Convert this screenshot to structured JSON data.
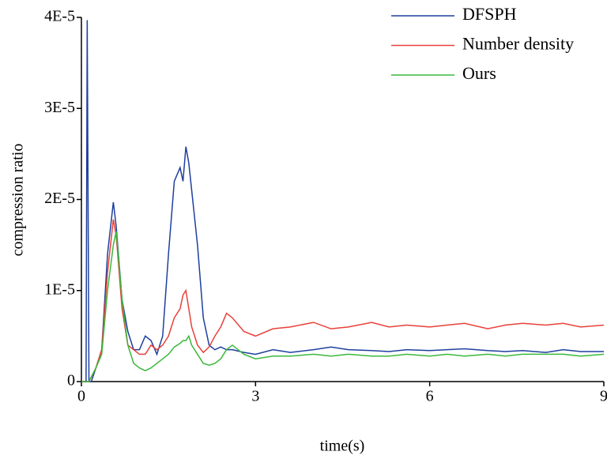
{
  "chart_data": {
    "type": "line",
    "x_label": "time(s)",
    "y_label": "compression ratio",
    "x": [
      0,
      0.08,
      0.1,
      0.13,
      0.17,
      0.25,
      0.35,
      0.45,
      0.55,
      0.6,
      0.7,
      0.8,
      0.9,
      1.0,
      1.1,
      1.2,
      1.3,
      1.4,
      1.5,
      1.6,
      1.7,
      1.75,
      1.8,
      1.85,
      1.9,
      2.0,
      2.1,
      2.2,
      2.3,
      2.4,
      2.5,
      2.6,
      2.8,
      3.0,
      3.3,
      3.6,
      4.0,
      4.3,
      4.6,
      5.0,
      5.3,
      5.6,
      6.0,
      6.3,
      6.6,
      7.0,
      7.3,
      7.6,
      8.0,
      8.3,
      8.6,
      9.0
    ],
    "series": [
      {
        "name": "DFSPH",
        "color": "#1f3f9e",
        "values": [
          0,
          0,
          3.97e-05,
          0,
          0,
          1.5e-06,
          3.5e-06,
          1.4e-05,
          1.97e-05,
          1.7e-05,
          9e-06,
          5.5e-06,
          3.5e-06,
          3.5e-06,
          5e-06,
          4.5e-06,
          3e-06,
          5e-06,
          1.4e-05,
          2.2e-05,
          2.35e-05,
          2.2e-05,
          2.58e-05,
          2.4e-05,
          2.1e-05,
          1.5e-05,
          7e-06,
          4e-06,
          3.5e-06,
          3.8e-06,
          3.5e-06,
          3.5e-06,
          3.2e-06,
          3e-06,
          3.5e-06,
          3.2e-06,
          3.5e-06,
          3.8e-06,
          3.5e-06,
          3.4e-06,
          3.3e-06,
          3.5e-06,
          3.4e-06,
          3.5e-06,
          3.6e-06,
          3.4e-06,
          3.3e-06,
          3.4e-06,
          3.2e-06,
          3.5e-06,
          3.3e-06,
          3.3e-06
        ]
      },
      {
        "name": "Number density",
        "color": "#e8413a",
        "values": [
          0,
          0,
          0,
          0,
          5e-07,
          1.5e-06,
          3.5e-06,
          1.2e-05,
          1.78e-05,
          1.6e-05,
          8e-06,
          4e-06,
          3.5e-06,
          3e-06,
          3e-06,
          4e-06,
          3.5e-06,
          4e-06,
          5e-06,
          7e-06,
          8e-06,
          9.5e-06,
          1e-05,
          8e-06,
          6e-06,
          4e-06,
          3.2e-06,
          3.8e-06,
          5e-06,
          6e-06,
          7.5e-06,
          7e-06,
          5.5e-06,
          5e-06,
          5.8e-06,
          6e-06,
          6.5e-06,
          5.8e-06,
          6e-06,
          6.5e-06,
          6e-06,
          6.2e-06,
          6e-06,
          6.2e-06,
          6.4e-06,
          5.8e-06,
          6.2e-06,
          6.4e-06,
          6.2e-06,
          6.4e-06,
          6e-06,
          6.2e-06
        ]
      },
      {
        "name": "Ours",
        "color": "#3cb83c",
        "values": [
          0,
          0,
          0,
          0,
          5e-07,
          1.5e-06,
          3e-06,
          1e-05,
          1.5e-05,
          1.65e-05,
          9e-06,
          4e-06,
          2e-06,
          1.5e-06,
          1.2e-06,
          1.5e-06,
          2e-06,
          2.5e-06,
          3e-06,
          3.8e-06,
          4.2e-06,
          4.5e-06,
          4.5e-06,
          5e-06,
          4e-06,
          3e-06,
          2e-06,
          1.8e-06,
          2e-06,
          2.5e-06,
          3.5e-06,
          4e-06,
          3e-06,
          2.5e-06,
          2.8e-06,
          2.8e-06,
          3e-06,
          2.8e-06,
          3e-06,
          2.8e-06,
          2.8e-06,
          3e-06,
          2.8e-06,
          3e-06,
          2.8e-06,
          3e-06,
          2.8e-06,
          3e-06,
          3e-06,
          3e-06,
          2.8e-06,
          3e-06
        ]
      }
    ],
    "xlim": [
      0,
      9
    ],
    "xticks": [
      0,
      3,
      6,
      9
    ],
    "ylim": [
      0,
      4e-05
    ],
    "yticks": [
      0,
      {
        "value": 1e-05,
        "label": "1E-5"
      },
      {
        "value": 2e-05,
        "label": "2E-5"
      },
      {
        "value": 3e-05,
        "label": "3E-5"
      },
      {
        "value": 4e-05,
        "label": "4E-5"
      }
    ],
    "legend": "top-right"
  }
}
